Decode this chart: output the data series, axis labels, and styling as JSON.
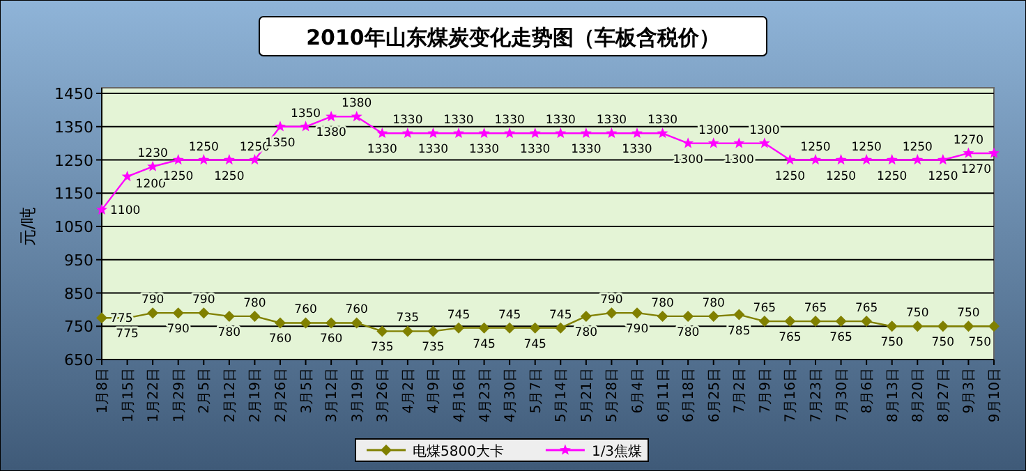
{
  "chart_data": {
    "type": "line",
    "title": "2010年山东煤炭变化走势图（车板含税价）",
    "ylabel": "元/吨",
    "categories": [
      "1月8日",
      "1月15日",
      "1月22日",
      "1月29日",
      "2月5日",
      "2月12日",
      "2月19日",
      "2月26日",
      "3月5日",
      "3月12日",
      "3月19日",
      "3月26日",
      "4月2日",
      "4月9日",
      "4月16日",
      "4月23日",
      "4月30日",
      "5月7日",
      "5月14日",
      "5月21日",
      "5月28日",
      "6月4日",
      "6月11日",
      "6月18日",
      "6月25日",
      "7月2日",
      "7月9日",
      "7月16日",
      "7月23日",
      "7月30日",
      "8月6日",
      "8月13日",
      "8月20日",
      "8月27日",
      "9月3日",
      "9月10日"
    ],
    "series": [
      {
        "name": "电煤5800大卡",
        "color": "#808000",
        "marker": "diamond",
        "values": [
          775,
          775,
          790,
          790,
          790,
          780,
          780,
          760,
          760,
          760,
          760,
          735,
          735,
          735,
          745,
          745,
          745,
          745,
          745,
          780,
          790,
          790,
          780,
          780,
          780,
          785,
          765,
          765,
          765,
          765,
          765,
          750,
          750,
          750,
          750,
          750
        ]
      },
      {
        "name": "1/3焦煤",
        "color": "#ff00ff",
        "marker": "star",
        "values": [
          1100,
          1200,
          1230,
          1250,
          1250,
          1250,
          1250,
          1350,
          1350,
          1380,
          1380,
          1330,
          1330,
          1330,
          1330,
          1330,
          1330,
          1330,
          1330,
          1330,
          1330,
          1330,
          1330,
          1300,
          1300,
          1300,
          1300,
          1250,
          1250,
          1250,
          1250,
          1250,
          1250,
          1250,
          1270,
          1270
        ]
      }
    ],
    "ylim": [
      650,
      1450
    ],
    "yticks": [
      650,
      750,
      850,
      950,
      1050,
      1150,
      1250,
      1350,
      1450
    ],
    "grid": "y",
    "legend": "bottom",
    "data_labels": true
  }
}
